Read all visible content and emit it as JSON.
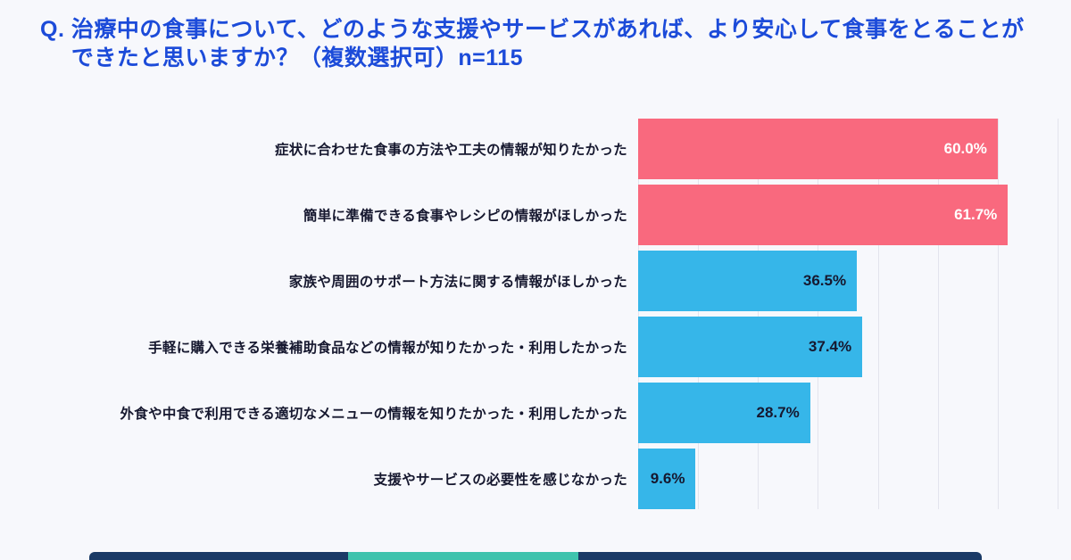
{
  "colors": {
    "background": "#f7f8fc",
    "title_blue": "#1c4bd9",
    "pink_bar": "#f9697e",
    "blue_bar": "#36b6e9",
    "label_dark": "#16182f",
    "gridline": "#e3e4ed",
    "footer_navy": "#1a3a66",
    "footer_teal": "#3ec3ad"
  },
  "title": {
    "prefix": "Q. ",
    "lines": [
      "治療中の食事について、どのような支援やサービスがあれば、より安心して食事をとることが",
      "できたと思いますか？（複数選択可）n=115"
    ]
  },
  "chart_data": {
    "type": "bar",
    "orientation": "horizontal",
    "title": "",
    "xlabel": "",
    "ylabel": "",
    "categories": [
      "症状に合わせた食事の方法や工夫の情報が知りたかった",
      "簡単に準備できる食事やレシピの情報がほしかった",
      "家族や周囲のサポート方法に関する情報がほしかった",
      "手軽に購入できる栄養補助食品などの情報が知りたかった・利用したかった",
      "外食や中食で利用できる適切なメニューの情報を知りたかった・利用したかった",
      "支援やサービスの必要性を感じなかった"
    ],
    "values": [
      60.0,
      61.7,
      36.5,
      37.4,
      28.7,
      9.6
    ],
    "value_labels": [
      "60.0%",
      "61.7%",
      "36.5%",
      "37.4%",
      "28.7%",
      "9.6%"
    ],
    "bar_colors": [
      "#f9697e",
      "#f9697e",
      "#36b6e9",
      "#36b6e9",
      "#36b6e9",
      "#36b6e9"
    ],
    "value_label_colors": [
      "#ffffff",
      "#ffffff",
      "#16182f",
      "#16182f",
      "#16182f",
      "#16182f"
    ],
    "xlim": [
      0,
      70
    ],
    "gridline_interval": 10,
    "grid": true,
    "legend": false
  },
  "footer": {
    "navy_color": "#1a3a66",
    "accent_color": "#3ec3ad"
  }
}
